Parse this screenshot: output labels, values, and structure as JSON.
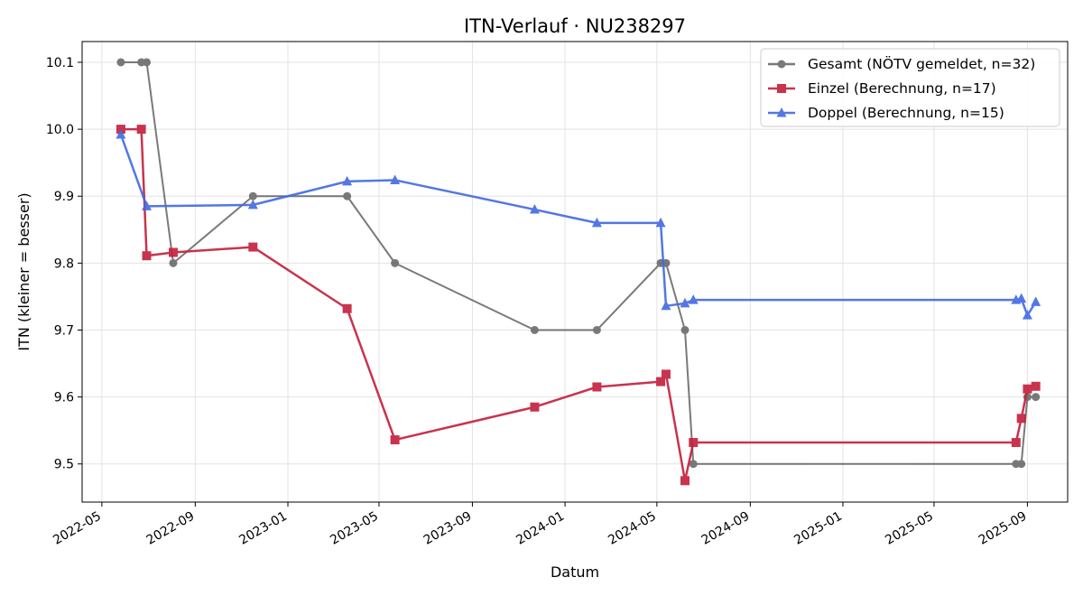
{
  "chart_data": {
    "type": "line",
    "title": "ITN-Verlauf · NU238297",
    "xlabel": "Datum",
    "ylabel": "ITN  (kleiner = besser)",
    "x_ticks": [
      "2022-05",
      "2022-09",
      "2023-01",
      "2023-05",
      "2023-09",
      "2024-01",
      "2024-05",
      "2024-09",
      "2025-01",
      "2025-05",
      "2025-09"
    ],
    "y_ticks": [
      9.5,
      9.6,
      9.7,
      9.8,
      9.9,
      10.0,
      10.1
    ],
    "xlim": [
      "2022-04-05",
      "2025-10-24"
    ],
    "ylim": [
      9.443,
      10.131
    ],
    "grid": true,
    "legend_position": "top-right",
    "series": [
      {
        "name": "Gesamt (NÖTV gemeldet, n=32)",
        "color": "#4d4d4d",
        "marker": "circle",
        "points": [
          [
            "2022-05-26",
            10.1
          ],
          [
            "2022-06-22",
            10.1
          ],
          [
            "2022-06-29",
            10.1
          ],
          [
            "2022-08-03",
            9.8
          ],
          [
            "2022-11-16",
            9.9
          ],
          [
            "2023-03-20",
            9.9
          ],
          [
            "2023-05-22",
            9.8
          ],
          [
            "2023-11-22",
            9.7
          ],
          [
            "2024-02-12",
            9.7
          ],
          [
            "2024-05-06",
            9.8
          ],
          [
            "2024-05-13",
            9.8
          ],
          [
            "2024-06-07",
            9.7
          ],
          [
            "2024-06-18",
            9.5
          ],
          [
            "2025-08-17",
            9.5
          ],
          [
            "2025-08-24",
            9.5
          ],
          [
            "2025-09-01",
            9.6
          ],
          [
            "2025-09-12",
            9.6
          ]
        ]
      },
      {
        "name": "Einzel (Berechnung, n=17)",
        "color": "#c41e3a",
        "marker": "square",
        "points": [
          [
            "2022-05-26",
            10.0
          ],
          [
            "2022-06-22",
            10.0
          ],
          [
            "2022-06-29",
            9.811
          ],
          [
            "2022-08-03",
            9.816
          ],
          [
            "2022-11-16",
            9.824
          ],
          [
            "2023-03-20",
            9.732
          ],
          [
            "2023-05-22",
            9.536
          ],
          [
            "2023-11-22",
            9.585
          ],
          [
            "2024-02-12",
            9.615
          ],
          [
            "2024-05-06",
            9.623
          ],
          [
            "2024-05-13",
            9.634
          ],
          [
            "2024-06-07",
            9.475
          ],
          [
            "2024-06-18",
            9.532
          ],
          [
            "2025-08-17",
            9.532
          ],
          [
            "2025-08-24",
            9.568
          ],
          [
            "2025-09-01",
            9.612
          ],
          [
            "2025-09-12",
            9.616
          ]
        ]
      },
      {
        "name": "Doppel (Berechnung, n=15)",
        "color": "#4169e1",
        "marker": "triangle",
        "points": [
          [
            "2022-05-26",
            9.992
          ],
          [
            "2022-06-29",
            9.885
          ],
          [
            "2022-11-16",
            9.887
          ],
          [
            "2023-03-20",
            9.922
          ],
          [
            "2023-05-22",
            9.924
          ],
          [
            "2023-11-22",
            9.88
          ],
          [
            "2024-02-12",
            9.86
          ],
          [
            "2024-05-06",
            9.86
          ],
          [
            "2024-05-13",
            9.736
          ],
          [
            "2024-06-07",
            9.74
          ],
          [
            "2024-06-18",
            9.745
          ],
          [
            "2025-08-17",
            9.745
          ],
          [
            "2025-08-24",
            9.747
          ],
          [
            "2025-09-01",
            9.722
          ],
          [
            "2025-09-12",
            9.742
          ]
        ]
      }
    ]
  }
}
